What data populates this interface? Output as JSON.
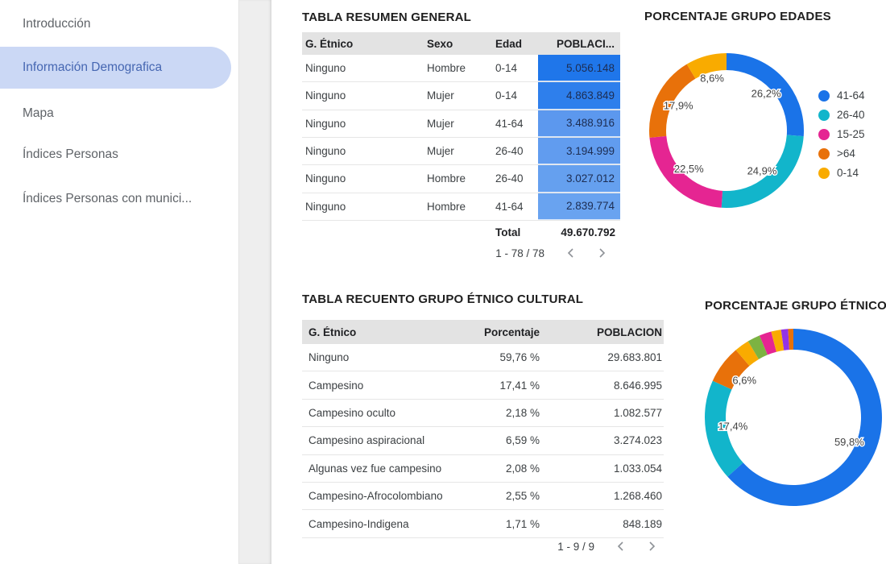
{
  "sidebar": {
    "items": [
      {
        "label": "Introducción",
        "active": false
      },
      {
        "label": "Información Demografica",
        "active": true
      },
      {
        "label": "Mapa",
        "active": false
      },
      {
        "label": "Índices Personas",
        "active": false
      },
      {
        "label": "Índices Personas con munici...",
        "active": false
      }
    ]
  },
  "summary_table": {
    "title": "TABLA RESUMEN GENERAL",
    "columns": [
      "G. Étnico",
      "Sexo",
      "Edad",
      "POBLACI..."
    ],
    "rows": [
      {
        "etnico": "Ninguno",
        "sexo": "Hombre",
        "edad": "0-14",
        "poblacion": "5.056.148",
        "heat_color": "#1f76ea"
      },
      {
        "etnico": "Ninguno",
        "sexo": "Mujer",
        "edad": "0-14",
        "poblacion": "4.863.849",
        "heat_color": "#2e7fec"
      },
      {
        "etnico": "Ninguno",
        "sexo": "Mujer",
        "edad": "41-64",
        "poblacion": "3.488.916",
        "heat_color": "#5c98ee"
      },
      {
        "etnico": "Ninguno",
        "sexo": "Mujer",
        "edad": "26-40",
        "poblacion": "3.194.999",
        "heat_color": "#619cef"
      },
      {
        "etnico": "Ninguno",
        "sexo": "Hombre",
        "edad": "26-40",
        "poblacion": "3.027.012",
        "heat_color": "#65a0ef"
      },
      {
        "etnico": "Ninguno",
        "sexo": "Hombre",
        "edad": "41-64",
        "poblacion": "2.839.774",
        "heat_color": "#69a3f0"
      }
    ],
    "total_label": "Total",
    "total_value": "49.670.792",
    "pagination": {
      "label": "1 - 78 / 78"
    }
  },
  "ethnic_table": {
    "title": "TABLA RECUENTO GRUPO ÉTNICO CULTURAL",
    "columns": [
      "G. Étnico",
      "Porcentaje",
      "POBLACION"
    ],
    "rows": [
      {
        "etnico": "Ninguno",
        "porcentaje": "59,76 %",
        "poblacion": "29.683.801"
      },
      {
        "etnico": "Campesino",
        "porcentaje": "17,41 %",
        "poblacion": "8.646.995"
      },
      {
        "etnico": "Campesino oculto",
        "porcentaje": "2,18 %",
        "poblacion": "1.082.577"
      },
      {
        "etnico": "Campesino aspiracional",
        "porcentaje": "6,59 %",
        "poblacion": "3.274.023"
      },
      {
        "etnico": "Algunas vez fue campesino",
        "porcentaje": "2,08 %",
        "poblacion": "1.033.054"
      },
      {
        "etnico": "Campesino-Afrocolombiano",
        "porcentaje": "2,55 %",
        "poblacion": "1.268.460"
      },
      {
        "etnico": "Campesino-Indigena",
        "porcentaje": "1,71 %",
        "poblacion": "848.189"
      }
    ],
    "pagination": {
      "label": "1 - 9 / 9"
    }
  },
  "chart_data": [
    {
      "type": "pie",
      "donut": true,
      "title": "PORCENTAJE GRUPO EDADES",
      "legend_position": "right",
      "slices": [
        {
          "label": "41-64",
          "value": 26.2,
          "display": "26,2%",
          "color": "#1a73e8"
        },
        {
          "label": "26-40",
          "value": 24.9,
          "display": "24,9%",
          "color": "#12b5cb"
        },
        {
          "label": "15-25",
          "value": 22.5,
          "display": "22,5%",
          "color": "#e52592"
        },
        {
          "label": ">64",
          "value": 17.9,
          "display": "17,9%",
          "color": "#e8710a"
        },
        {
          "label": "0-14",
          "value": 8.6,
          "display": "8,6%",
          "color": "#f9ab00"
        }
      ]
    },
    {
      "type": "pie",
      "donut": true,
      "title": "PORCENTAJE GRUPO ÉTNICO",
      "legend_position": "none",
      "slices": [
        {
          "label": "Ninguno",
          "value": 59.76,
          "display": "59,8%",
          "color": "#1a73e8"
        },
        {
          "label": "Campesino",
          "value": 17.41,
          "display": "17,4%",
          "color": "#12b5cb"
        },
        {
          "label": "Campesino aspiracional",
          "value": 6.59,
          "display": "6,6%",
          "color": "#e8710a"
        },
        {
          "label": "Campesino-Afrocolombiano",
          "value": 2.55,
          "display": "",
          "color": "#f9ab00"
        },
        {
          "label": "Campesino oculto",
          "value": 2.18,
          "display": "",
          "color": "#7cb342"
        },
        {
          "label": "Algunas vez fue campesino",
          "value": 2.08,
          "display": "",
          "color": "#e52592"
        },
        {
          "label": "Campesino-Indigena",
          "value": 1.71,
          "display": "",
          "color": "#f9ab00"
        },
        {
          "label": "",
          "value": 1.2,
          "display": "",
          "color": "#9334e6"
        },
        {
          "label": "",
          "value": 0.9,
          "display": "",
          "color": "#e8710a"
        }
      ]
    }
  ]
}
